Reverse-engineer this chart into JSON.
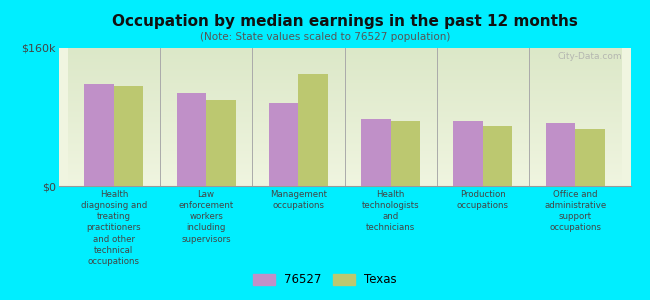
{
  "title": "Occupation by median earnings in the past 12 months",
  "subtitle": "(Note: State values scaled to 76527 population)",
  "categories": [
    "Health\ndiagnosing and\ntreating\npractitioners\nand other\ntechnical\noccupations",
    "Law\nenforcement\nworkers\nincluding\nsupervisors",
    "Management\noccupations",
    "Health\ntechnologists\nand\ntechnicians",
    "Production\noccupations",
    "Office and\nadministrative\nsupport\noccupations"
  ],
  "values_76527": [
    118000,
    108000,
    96000,
    78000,
    75000,
    73000
  ],
  "values_texas": [
    116000,
    100000,
    130000,
    75000,
    69000,
    66000
  ],
  "color_76527": "#c090c8",
  "color_texas": "#bcc870",
  "ylim": [
    0,
    160000
  ],
  "ytick_labels": [
    "$0",
    "$160k"
  ],
  "background_color": "#00eeff",
  "plot_bg_top": "#dce8c8",
  "plot_bg_bottom": "#f0f5e0",
  "legend_76527": "76527",
  "legend_texas": "Texas",
  "watermark": "City-Data.com"
}
